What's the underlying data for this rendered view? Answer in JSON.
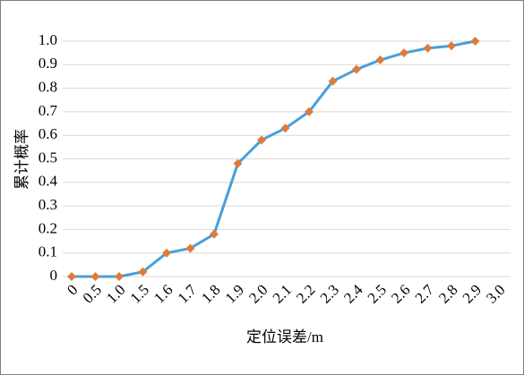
{
  "chart_data": {
    "type": "line",
    "x_label": "定位误差/m",
    "y_label": "累计概率",
    "categories": [
      "0",
      "0.5",
      "1.0",
      "1.5",
      "1.6",
      "1.7",
      "1.8",
      "1.9",
      "2.0",
      "2.1",
      "2.2",
      "2.3",
      "2.4",
      "2.5",
      "2.6",
      "2.7",
      "2.8",
      "2.9",
      "3.0"
    ],
    "values": [
      0,
      0,
      0,
      0.02,
      0.1,
      0.12,
      0.18,
      0.48,
      0.58,
      0.63,
      0.7,
      0.83,
      0.88,
      0.92,
      0.95,
      0.97,
      0.98,
      1,
      null
    ],
    "color": "#4a9fd8",
    "marker_color": "#e07b39",
    "ylim": [
      0,
      1
    ],
    "yticks": [
      0,
      0.1,
      0.2,
      0.3,
      0.4,
      0.5,
      0.6,
      0.7,
      0.8,
      0.9,
      {
        "value": 1,
        "label": "1.0"
      }
    ],
    "grid": true
  }
}
